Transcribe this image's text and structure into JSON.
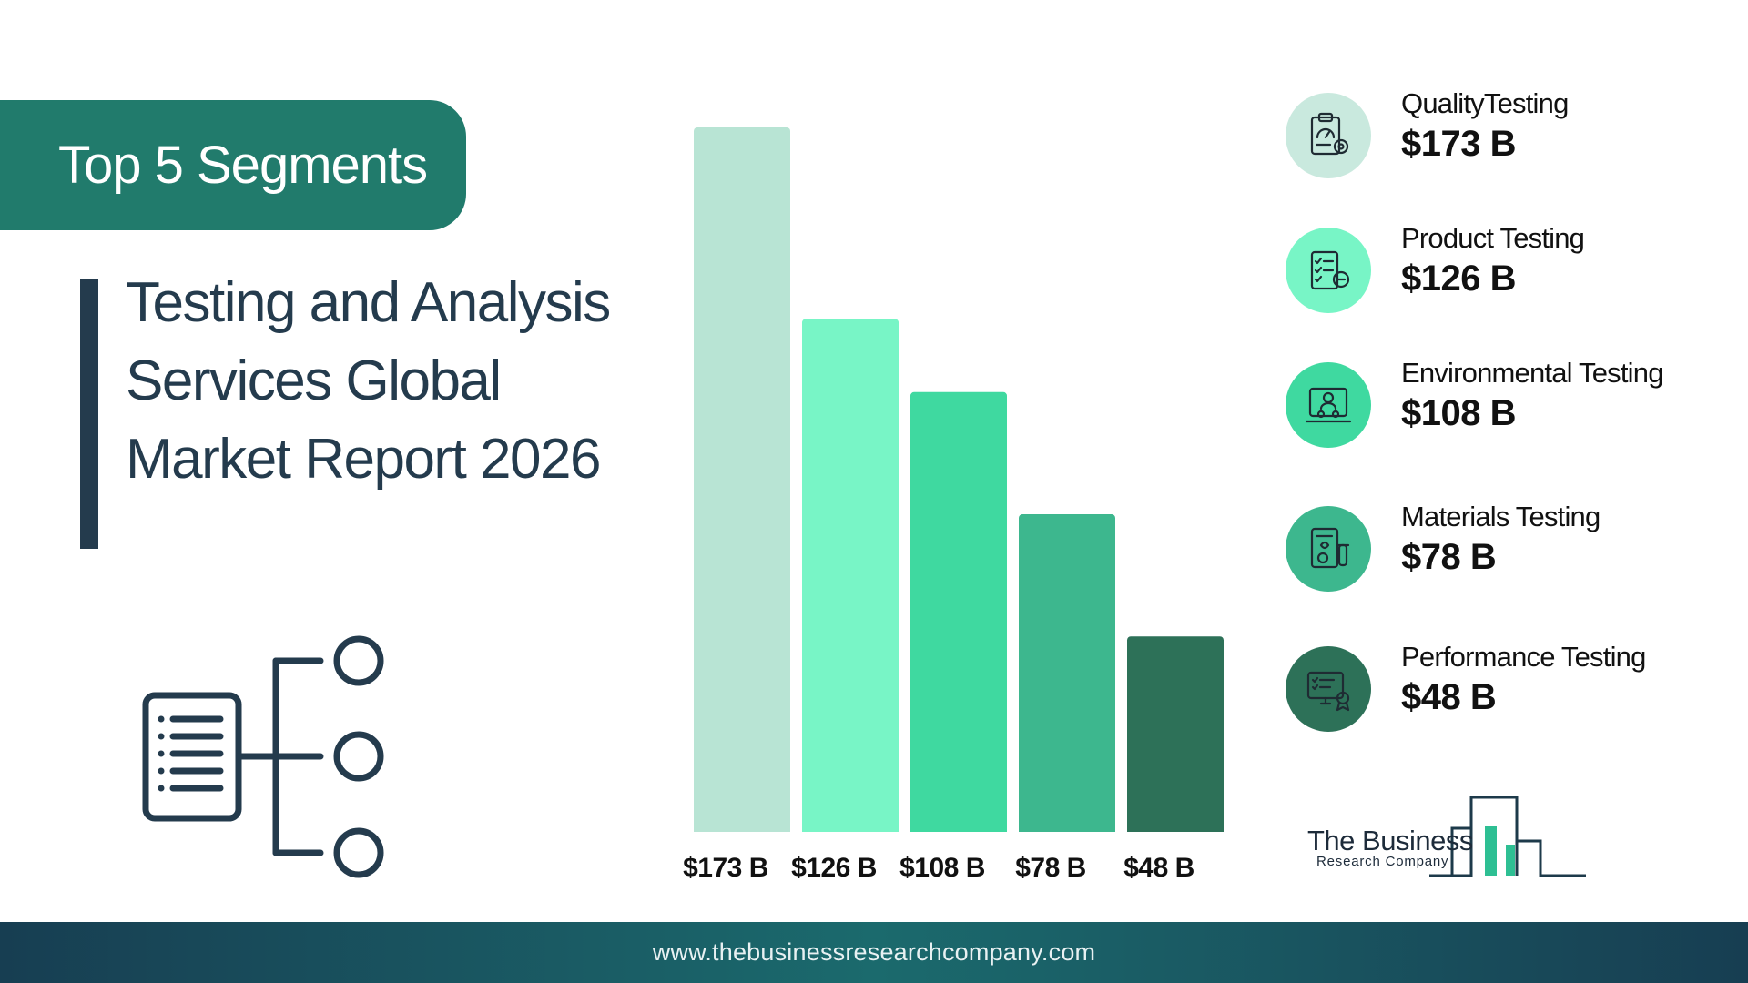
{
  "header": {
    "tab_label": "Top 5 Segments",
    "title_lines": [
      "Testing and Analysis",
      "Services Global",
      "Market Report 2026"
    ]
  },
  "chart_data": {
    "type": "bar",
    "categories": [
      "QualityTesting",
      "Product Testing",
      "Environmental Testing",
      "Materials Testing",
      "Performance Testing"
    ],
    "values": [
      173,
      126,
      108,
      78,
      48
    ],
    "data_labels": [
      "$173 B",
      "$126 B",
      "$108 B",
      "$78 B",
      "$48 B"
    ],
    "unit": "$ B",
    "colors": [
      "#b8e4d4",
      "#78f5c6",
      "#3fd9a0",
      "#3db78e",
      "#2d7158"
    ],
    "grid": false,
    "legend": "right"
  },
  "legend": {
    "items": [
      {
        "name": "QualityTesting",
        "value": "$173 B",
        "icon": "clipboard-gauge-icon",
        "bg": "#c9e9de"
      },
      {
        "name": "Product Testing",
        "value": "$126 B",
        "icon": "checklist-icon",
        "bg": "#78f5c6"
      },
      {
        "name": "Environmental Testing",
        "value": "$108 B",
        "icon": "laptop-user-icon",
        "bg": "#3fd9a0"
      },
      {
        "name": "Materials Testing",
        "value": "$78 B",
        "icon": "lab-report-icon",
        "bg": "#3db78e"
      },
      {
        "name": "Performance Testing",
        "value": "$48 B",
        "icon": "monitor-award-icon",
        "bg": "#2d7158"
      }
    ]
  },
  "logo": {
    "line1": "The Business",
    "line2": "Research Company"
  },
  "footer": {
    "url": "www.thebusinessresearchcompany.com"
  }
}
